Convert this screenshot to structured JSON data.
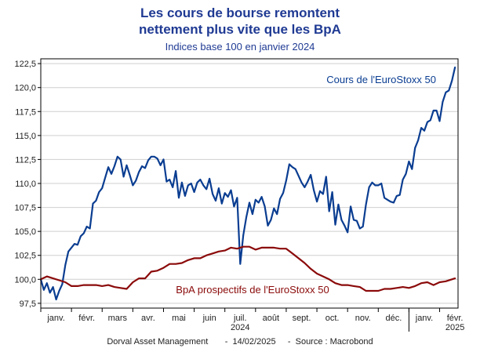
{
  "header": {
    "title_line1": "Les cours de bourse remontent",
    "title_line2": "nettement plus vite que les BpA",
    "subtitle": "Indices base 100 en janvier 2024"
  },
  "footer": {
    "source": "Dorval Asset Management       -  14/02/2025     -  Source : Macrobond"
  },
  "chart_data": {
    "type": "line",
    "ylim": [
      97,
      123
    ],
    "yticks": [
      97.5,
      100.0,
      102.5,
      105.0,
      107.5,
      110.0,
      112.5,
      115.0,
      117.5,
      120.0,
      122.5
    ],
    "ytick_labels": [
      "97,5",
      "100,0",
      "102,5",
      "105,0",
      "107,5",
      "110,0",
      "112,5",
      "115,0",
      "117,5",
      "120,0",
      "122,5"
    ],
    "xlim": [
      0,
      13.6
    ],
    "month_labels": [
      "janv.",
      "févr.",
      "mars",
      "avr.",
      "mai",
      "juin",
      "juil.",
      "août",
      "sept.",
      "oct.",
      "nov.",
      "déc.",
      "janv.",
      "févr."
    ],
    "year_labels": [
      {
        "text": "2024",
        "month_index": 6
      },
      {
        "text": "2025",
        "month_index": 13
      }
    ],
    "grid": true,
    "colors": {
      "eurostoxx": "#0a3d91",
      "bpa": "#8b0a0a"
    },
    "annotations": [
      {
        "text": "Cours de l'EuroStoxx 50",
        "series": "eurostoxx"
      },
      {
        "text": "BpA prospectifs de l'EuroStoxx 50",
        "series": "bpa"
      }
    ],
    "series": [
      {
        "key": "eurostoxx",
        "name": "Cours de l'EuroStoxx 50",
        "x": [
          0.0,
          0.1,
          0.2,
          0.3,
          0.4,
          0.5,
          0.6,
          0.7,
          0.8,
          0.9,
          1.0,
          1.1,
          1.2,
          1.3,
          1.4,
          1.5,
          1.6,
          1.7,
          1.8,
          1.9,
          2.0,
          2.1,
          2.2,
          2.3,
          2.4,
          2.5,
          2.6,
          2.7,
          2.8,
          2.9,
          3.0,
          3.1,
          3.2,
          3.3,
          3.4,
          3.5,
          3.6,
          3.7,
          3.8,
          3.9,
          4.0,
          4.1,
          4.2,
          4.3,
          4.4,
          4.5,
          4.6,
          4.7,
          4.8,
          4.9,
          5.0,
          5.1,
          5.2,
          5.3,
          5.4,
          5.5,
          5.6,
          5.7,
          5.8,
          5.9,
          6.0,
          6.1,
          6.2,
          6.3,
          6.4,
          6.5,
          6.6,
          6.7,
          6.8,
          6.9,
          7.0,
          7.1,
          7.2,
          7.3,
          7.4,
          7.5,
          7.6,
          7.7,
          7.8,
          7.9,
          8.0,
          8.1,
          8.2,
          8.3,
          8.4,
          8.5,
          8.6,
          8.7,
          8.8,
          8.9,
          9.0,
          9.1,
          9.2,
          9.3,
          9.4,
          9.5,
          9.6,
          9.7,
          9.8,
          9.9,
          10.0,
          10.1,
          10.2,
          10.3,
          10.4,
          10.5,
          10.6,
          10.7,
          10.8,
          10.9,
          11.0,
          11.1,
          11.2,
          11.3,
          11.4,
          11.5,
          11.6,
          11.7,
          11.8,
          11.9,
          12.0,
          12.1,
          12.2,
          12.3,
          12.4,
          12.5,
          12.6,
          12.7,
          12.8,
          12.9,
          13.0,
          13.1,
          13.2,
          13.3,
          13.4,
          13.5
        ],
        "values": [
          100.0,
          98.9,
          99.6,
          98.6,
          99.2,
          97.9,
          98.8,
          99.5,
          101.5,
          102.9,
          103.3,
          103.7,
          103.6,
          104.5,
          104.8,
          105.5,
          105.3,
          107.9,
          108.2,
          109.1,
          109.5,
          110.6,
          111.7,
          111.0,
          111.8,
          112.8,
          112.5,
          110.7,
          111.9,
          110.9,
          109.8,
          110.3,
          111.2,
          111.8,
          111.6,
          112.4,
          112.8,
          112.8,
          112.6,
          111.9,
          112.5,
          110.2,
          110.4,
          109.6,
          111.3,
          108.5,
          110.1,
          108.7,
          109.8,
          110.0,
          109.1,
          110.1,
          110.4,
          109.8,
          109.4,
          110.5,
          108.9,
          108.2,
          109.5,
          107.9,
          109.0,
          108.6,
          109.3,
          107.6,
          108.5,
          101.6,
          104.6,
          106.5,
          108.0,
          106.8,
          108.3,
          108.0,
          108.6,
          107.6,
          105.6,
          106.2,
          107.4,
          106.8,
          108.4,
          109.0,
          110.3,
          112.0,
          111.7,
          111.5,
          110.8,
          110.1,
          109.6,
          110.2,
          110.9,
          109.3,
          108.1,
          109.2,
          108.9,
          110.7,
          107.1,
          109.1,
          105.7,
          107.8,
          106.2,
          105.6,
          104.9,
          107.6,
          106.2,
          106.1,
          105.3,
          105.5,
          107.8,
          109.6,
          110.1,
          109.8,
          109.8,
          110.0,
          108.5,
          108.3,
          108.1,
          108.0,
          108.7,
          108.8,
          110.4,
          111.0,
          112.3,
          111.5,
          113.7,
          114.5,
          115.8,
          115.5,
          116.4,
          116.6,
          117.6,
          117.6,
          116.5,
          118.5,
          119.5,
          119.7,
          120.7,
          122.1
        ]
      },
      {
        "key": "bpa",
        "name": "BpA prospectifs de l'EuroStoxx 50",
        "x": [
          0.0,
          0.2,
          0.4,
          0.6,
          0.8,
          1.0,
          1.2,
          1.4,
          1.6,
          1.8,
          2.0,
          2.2,
          2.4,
          2.6,
          2.8,
          3.0,
          3.2,
          3.4,
          3.6,
          3.8,
          4.0,
          4.2,
          4.4,
          4.6,
          4.8,
          5.0,
          5.2,
          5.4,
          5.6,
          5.8,
          6.0,
          6.2,
          6.4,
          6.6,
          6.8,
          7.0,
          7.2,
          7.4,
          7.6,
          7.8,
          8.0,
          8.2,
          8.4,
          8.6,
          8.8,
          9.0,
          9.2,
          9.4,
          9.6,
          9.8,
          10.0,
          10.2,
          10.4,
          10.6,
          10.8,
          11.0,
          11.2,
          11.4,
          11.6,
          11.8,
          12.0,
          12.2,
          12.4,
          12.6,
          12.8,
          13.0,
          13.2,
          13.4,
          13.5
        ],
        "values": [
          100.0,
          100.3,
          100.1,
          99.9,
          99.7,
          99.3,
          99.3,
          99.4,
          99.4,
          99.4,
          99.3,
          99.4,
          99.2,
          99.1,
          99.0,
          99.7,
          100.1,
          100.1,
          100.8,
          100.9,
          101.2,
          101.6,
          101.6,
          101.7,
          102.0,
          102.2,
          102.2,
          102.5,
          102.7,
          102.9,
          103.0,
          103.3,
          103.2,
          103.4,
          103.4,
          103.1,
          103.3,
          103.3,
          103.3,
          103.2,
          103.2,
          102.7,
          102.2,
          101.7,
          101.1,
          100.6,
          100.3,
          100.0,
          99.6,
          99.4,
          99.4,
          99.3,
          99.2,
          98.8,
          98.8,
          98.8,
          99.0,
          99.0,
          99.1,
          99.2,
          99.1,
          99.3,
          99.6,
          99.7,
          99.4,
          99.7,
          99.8,
          100.0,
          100.1
        ]
      }
    ]
  }
}
